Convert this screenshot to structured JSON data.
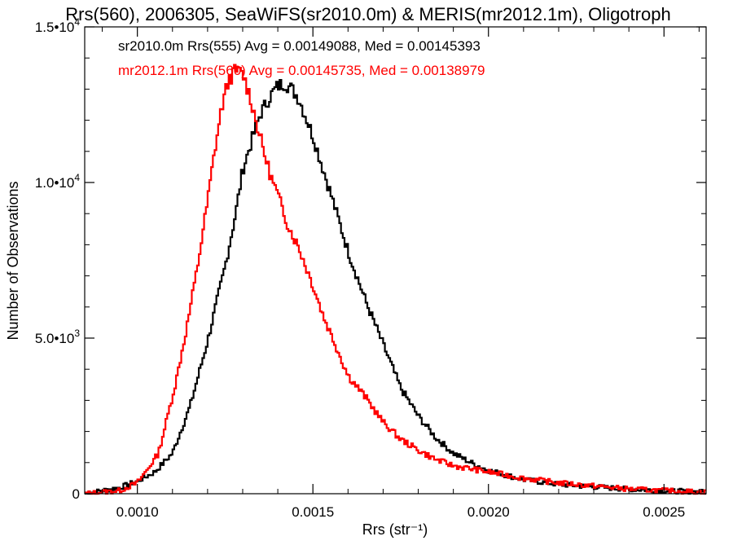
{
  "chart_data": {
    "type": "line",
    "title": "Rrs(560), 2006305, SeaWiFS(sr2010.0m) & MERIS(mr2012.1m), Oligotroph",
    "xlabel": "Rrs (str⁻¹)",
    "ylabel": "Number of Observations",
    "xlim": [
      0.00085,
      0.00262
    ],
    "ylim": [
      0,
      15000
    ],
    "x_ticks": [
      {
        "value": 0.001,
        "label": "0.0010"
      },
      {
        "value": 0.0015,
        "label": "0.0015"
      },
      {
        "value": 0.002,
        "label": "0.0020"
      },
      {
        "value": 0.0025,
        "label": "0.0025"
      }
    ],
    "y_ticks": [
      {
        "value": 0,
        "mantissa": "0",
        "exp": ""
      },
      {
        "value": 5000,
        "mantissa": "5.0•10",
        "exp": "3"
      },
      {
        "value": 10000,
        "mantissa": "1.0•10",
        "exp": "4"
      },
      {
        "value": 15000,
        "mantissa": "1.5•10",
        "exp": "4"
      }
    ],
    "grid": false,
    "step_style": true,
    "legend_position": "top-left",
    "series": [
      {
        "name": "sr2010.0m Rrs(555) Avg = 0.00149088, Med = 0.00145393",
        "color": "#000000",
        "x": [
          0.00085,
          0.00095,
          0.001,
          0.00105,
          0.0011,
          0.00115,
          0.0012,
          0.00125,
          0.00128,
          0.0013,
          0.00133,
          0.00135,
          0.00138,
          0.0014,
          0.00142,
          0.00144,
          0.00146,
          0.00148,
          0.0015,
          0.00153,
          0.00156,
          0.0016,
          0.00165,
          0.0017,
          0.00175,
          0.0018,
          0.00185,
          0.0019,
          0.00195,
          0.002,
          0.0021,
          0.0022,
          0.0023,
          0.0024,
          0.0025,
          0.00262
        ],
        "y": [
          0,
          200,
          400,
          700,
          1300,
          2800,
          4900,
          7300,
          9000,
          10400,
          11500,
          12200,
          12800,
          13100,
          13200,
          13000,
          12700,
          12100,
          11500,
          10400,
          9300,
          7800,
          6200,
          4800,
          3400,
          2500,
          1800,
          1300,
          1000,
          750,
          450,
          300,
          220,
          150,
          100,
          50
        ]
      },
      {
        "name": "mr2012.1m Rrs(560) Avg = 0.00145735, Med = 0.00138979",
        "color": "#ff0000",
        "x": [
          0.00085,
          0.00095,
          0.001,
          0.00103,
          0.00106,
          0.00108,
          0.00111,
          0.00114,
          0.00117,
          0.0012,
          0.00122,
          0.00124,
          0.00126,
          0.00128,
          0.0013,
          0.00132,
          0.00134,
          0.00136,
          0.00138,
          0.0014,
          0.00143,
          0.00146,
          0.0015,
          0.00153,
          0.00156,
          0.0016,
          0.00165,
          0.0017,
          0.00175,
          0.0018,
          0.00185,
          0.0019,
          0.00195,
          0.002,
          0.0021,
          0.0022,
          0.0023,
          0.0024,
          0.0025,
          0.00262
        ],
        "y": [
          0,
          100,
          350,
          800,
          1300,
          2200,
          3600,
          5300,
          7200,
          9400,
          11000,
          12400,
          13300,
          13600,
          13500,
          12800,
          11900,
          11000,
          10200,
          9600,
          8600,
          7900,
          6700,
          5700,
          4900,
          3800,
          3100,
          2300,
          1750,
          1400,
          1100,
          900,
          800,
          700,
          500,
          350,
          250,
          150,
          100,
          50
        ]
      }
    ]
  }
}
